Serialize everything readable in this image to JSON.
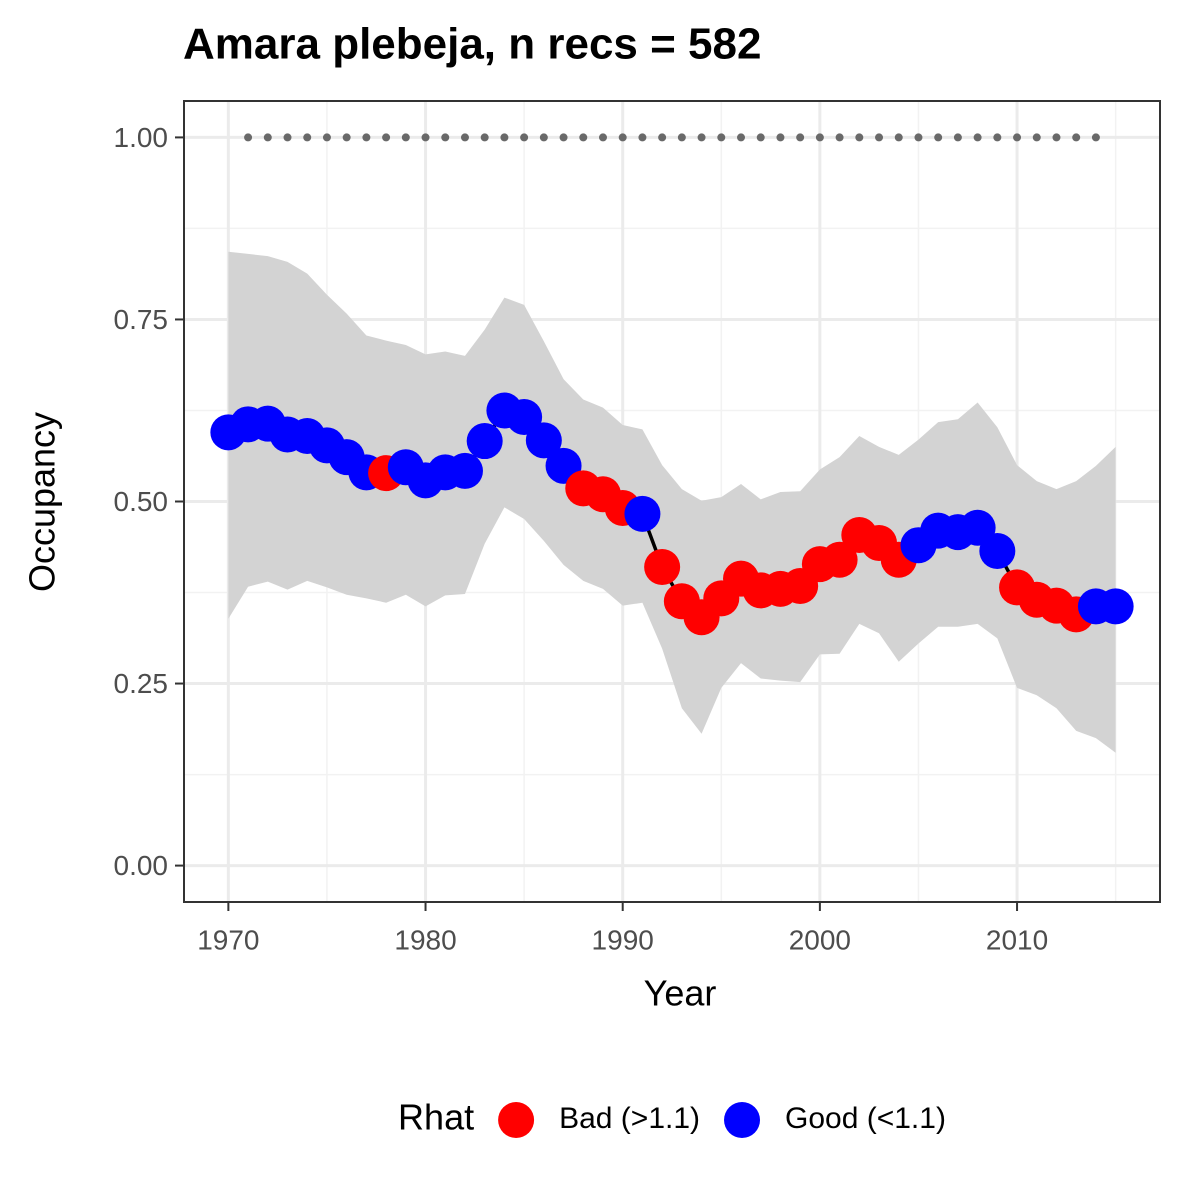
{
  "chart_data": {
    "type": "line",
    "title": "Amara plebeja, n recs = 582",
    "x_label": "Year",
    "y_label": "Occupancy",
    "x": [
      1970,
      1971,
      1972,
      1973,
      1974,
      1975,
      1976,
      1977,
      1978,
      1979,
      1980,
      1981,
      1982,
      1983,
      1984,
      1985,
      1986,
      1987,
      1988,
      1989,
      1990,
      1991,
      1992,
      1993,
      1994,
      1995,
      1996,
      1997,
      1998,
      1999,
      2000,
      2001,
      2002,
      2003,
      2004,
      2005,
      2006,
      2007,
      2008,
      2009,
      2010,
      2011,
      2012,
      2013,
      2014,
      2015
    ],
    "series": [
      {
        "name": "Occupancy",
        "color": "#000000",
        "values": [
          0.595,
          0.606,
          0.607,
          0.592,
          0.59,
          0.577,
          0.561,
          0.54,
          0.539,
          0.547,
          0.529,
          0.54,
          0.542,
          0.583,
          0.625,
          0.616,
          0.584,
          0.549,
          0.518,
          0.51,
          0.491,
          0.483,
          0.41,
          0.363,
          0.341,
          0.367,
          0.394,
          0.378,
          0.38,
          0.384,
          0.414,
          0.42,
          0.454,
          0.443,
          0.42,
          0.44,
          0.46,
          0.458,
          0.464,
          0.432,
          0.382,
          0.365,
          0.357,
          0.345,
          0.356,
          0.356
        ],
        "lower": [
          0.339,
          0.383,
          0.39,
          0.379,
          0.391,
          0.382,
          0.372,
          0.367,
          0.361,
          0.372,
          0.356,
          0.371,
          0.373,
          0.442,
          0.492,
          0.476,
          0.446,
          0.413,
          0.391,
          0.38,
          0.357,
          0.361,
          0.298,
          0.216,
          0.181,
          0.244,
          0.278,
          0.257,
          0.254,
          0.252,
          0.29,
          0.291,
          0.332,
          0.319,
          0.28,
          0.305,
          0.328,
          0.328,
          0.332,
          0.312,
          0.244,
          0.234,
          0.216,
          0.185,
          0.175,
          0.155
        ],
        "upper": [
          0.843,
          0.84,
          0.837,
          0.829,
          0.813,
          0.784,
          0.758,
          0.728,
          0.721,
          0.715,
          0.702,
          0.706,
          0.7,
          0.736,
          0.78,
          0.77,
          0.72,
          0.668,
          0.64,
          0.629,
          0.605,
          0.599,
          0.55,
          0.517,
          0.501,
          0.506,
          0.524,
          0.503,
          0.513,
          0.514,
          0.544,
          0.561,
          0.59,
          0.575,
          0.564,
          0.585,
          0.609,
          0.613,
          0.636,
          0.602,
          0.55,
          0.528,
          0.517,
          0.528,
          0.549,
          0.575
        ],
        "rhat_class": [
          1,
          1,
          1,
          1,
          1,
          1,
          1,
          1,
          0,
          1,
          1,
          1,
          1,
          1,
          1,
          1,
          1,
          1,
          0,
          0,
          0,
          1,
          0,
          0,
          0,
          0,
          0,
          0,
          0,
          0,
          0,
          0,
          0,
          0,
          0,
          1,
          1,
          1,
          1,
          1,
          0,
          0,
          0,
          0,
          1,
          1
        ]
      }
    ],
    "band_color": "#d3d3d3",
    "record_years": [
      1971,
      1972,
      1973,
      1974,
      1975,
      1976,
      1977,
      1978,
      1979,
      1980,
      1981,
      1982,
      1983,
      1984,
      1985,
      1986,
      1987,
      1988,
      1989,
      1990,
      1991,
      1992,
      1993,
      1994,
      1995,
      1996,
      1997,
      1998,
      1999,
      2000,
      2001,
      2002,
      2003,
      2004,
      2005,
      2006,
      2007,
      2008,
      2009,
      2010,
      2011,
      2012,
      2013,
      2014
    ],
    "record_level": 1,
    "record_color": "#696969",
    "legend_title": "Rhat",
    "legend": [
      {
        "name": "Bad (>1.1)",
        "color": "#ff0000"
      },
      {
        "name": "Good (<1.1)",
        "color": "#0000ff"
      }
    ],
    "legend_position": "bottom",
    "xlim": [
      1967.75,
      2017.25
    ],
    "ylim": [
      -0.05,
      1.05
    ],
    "xticks": [
      1970,
      1980,
      1990,
      2000,
      2010
    ],
    "xminor": [
      1975,
      1985,
      1995,
      2005,
      2015
    ],
    "yticks": [
      {
        "value": 0,
        "label": "0.00"
      },
      {
        "value": 0.25,
        "label": "0.25"
      },
      {
        "value": 0.5,
        "label": "0.50"
      },
      {
        "value": 0.75,
        "label": "0.75"
      },
      {
        "value": 1,
        "label": "1.00"
      }
    ],
    "yminor": [
      0.125,
      0.375,
      0.625,
      0.875
    ],
    "grid": true
  }
}
